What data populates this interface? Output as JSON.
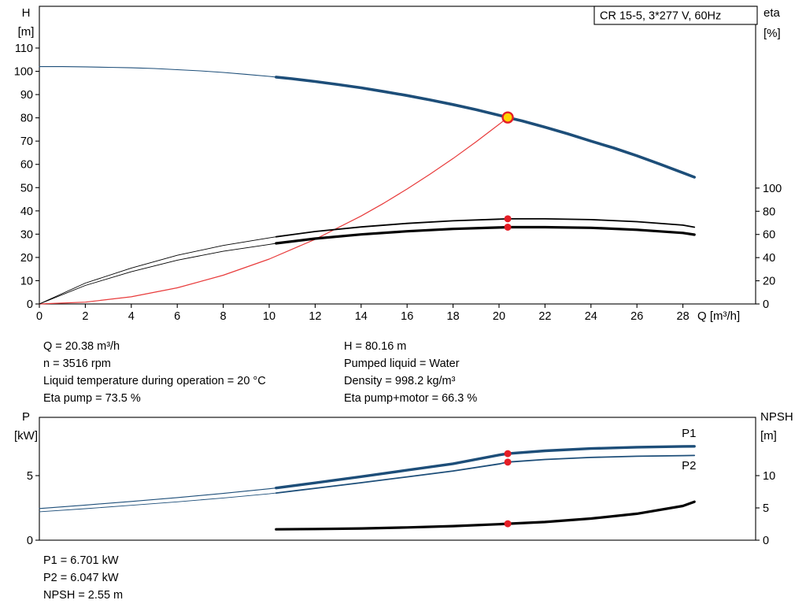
{
  "title_box": "CR 15-5, 3*277 V, 60Hz",
  "info_top_left": [
    "Q = 20.38 m³/h",
    "n = 3516 rpm",
    "Liquid temperature during operation = 20 °C",
    "Eta pump = 73.5 %"
  ],
  "info_top_right": [
    "H = 80.16 m",
    "Pumped liquid = Water",
    "Density = 998.2 kg/m³",
    "Eta pump+motor = 66.3 %"
  ],
  "info_bottom": [
    "P1 = 6.701 kW",
    "P2 = 6.047 kW",
    "NPSH = 2.55 m"
  ],
  "colors": {
    "curve_blue": "#1d4e79",
    "curve_red": "#e83b3b",
    "curve_black": "#000000",
    "duty_fill": "#ffd400",
    "duty_ring": "#e41e26",
    "dot_red": "#e41e26"
  },
  "chart_data": [
    {
      "id": "performance-chart",
      "type": "line",
      "title": "CR 15-5, 3*277 V, 60Hz",
      "xlabel": "Q [m³/h]",
      "ylabel_left": [
        "H",
        "[m]"
      ],
      "ylabel_right": [
        "eta",
        "[%]"
      ],
      "xlim": [
        0,
        31.2
      ],
      "ylim_left": [
        0,
        128
      ],
      "ylim_right": [
        0,
        100
      ],
      "right_axis_factor": 0.498,
      "x_ticks": [
        0,
        2,
        4,
        6,
        8,
        10,
        12,
        14,
        16,
        18,
        20,
        22,
        24,
        26,
        28
      ],
      "y_ticks_left": [
        0,
        10,
        20,
        30,
        40,
        50,
        60,
        70,
        80,
        90,
        100,
        110
      ],
      "y_ticks_right": [
        0,
        20,
        40,
        60,
        80,
        100
      ],
      "series": [
        {
          "name": "h-curve",
          "axis": "left",
          "color": "#1d4e79",
          "width_thin": 1.1,
          "width_thick": 3.6,
          "split_q": 10.3,
          "x": [
            0,
            1,
            2,
            3,
            4,
            5,
            6,
            7,
            8,
            9,
            10,
            10.3,
            11,
            12,
            13,
            14,
            15,
            16,
            17,
            18,
            19,
            20,
            20.38,
            21,
            22,
            23,
            24,
            25,
            26,
            27,
            28,
            28.5
          ],
          "y": [
            102,
            102,
            101.9,
            101.7,
            101.5,
            101.2,
            100.7,
            100.2,
            99.5,
            98.7,
            97.8,
            97.5,
            96.8,
            95.6,
            94.3,
            92.9,
            91.3,
            89.6,
            87.7,
            85.7,
            83.5,
            81.1,
            80.16,
            78.7,
            76,
            73.1,
            70,
            67,
            63.7,
            60.1,
            56.4,
            54.5
          ]
        },
        {
          "name": "system-curve",
          "axis": "left",
          "color": "#e83b3b",
          "width_thick": 1.2,
          "x": [
            0,
            2,
            4,
            6,
            8,
            10,
            12,
            14,
            15,
            16,
            17,
            18,
            19,
            20,
            20.38
          ],
          "y": [
            0,
            0.77,
            3.09,
            6.95,
            12.35,
            19.3,
            27.8,
            37.8,
            43.4,
            49.4,
            55.8,
            62.5,
            69.7,
            77.2,
            80.16
          ]
        },
        {
          "name": "eta-pump-curve",
          "axis": "right",
          "color": "#000000",
          "width_thin": 0.9,
          "width_thick": 1.8,
          "split_q": 10.3,
          "x": [
            0,
            2,
            4,
            6,
            8,
            10,
            10.3,
            12,
            14,
            16,
            18,
            20,
            20.38,
            22,
            24,
            26,
            28,
            28.5
          ],
          "y": [
            0,
            18,
            31,
            42,
            50.5,
            57,
            58,
            62.5,
            66.5,
            69.5,
            71.8,
            73.2,
            73.5,
            73.5,
            72.8,
            71,
            68,
            66.3
          ]
        },
        {
          "name": "eta-pump-motor-curve",
          "axis": "right",
          "color": "#000000",
          "width_thin": 0.9,
          "width_thick": 3.2,
          "split_q": 10.3,
          "x": [
            0,
            2,
            4,
            6,
            8,
            10,
            10.3,
            12,
            14,
            16,
            18,
            20,
            20.38,
            22,
            24,
            26,
            28,
            28.5
          ],
          "y": [
            0,
            16,
            27.8,
            37.8,
            45.5,
            51.4,
            52.3,
            56.4,
            60,
            62.7,
            64.8,
            66,
            66.3,
            66.3,
            65.7,
            64,
            61.3,
            59.8
          ]
        }
      ],
      "markers": [
        {
          "name": "duty-eta-pump-dot",
          "q": 20.38,
          "v": 73.5,
          "axis": "right",
          "r": 4.5,
          "fill": "#e41e26"
        },
        {
          "name": "duty-eta-motor-dot",
          "q": 20.38,
          "v": 66.3,
          "axis": "right",
          "r": 4.5,
          "fill": "#e41e26"
        },
        {
          "name": "duty-point",
          "q": 20.38,
          "v": 80.16,
          "axis": "left",
          "r": 6.5,
          "fill": "#ffd400",
          "stroke": "#e41e26",
          "stroke_width": 2.4
        }
      ],
      "annotations": []
    },
    {
      "id": "power-npsh-chart",
      "type": "line",
      "title": "",
      "xlabel": "",
      "ylabel_left": [
        "P",
        "[kW]"
      ],
      "ylabel_right": [
        "NPSH",
        "[m]"
      ],
      "xlim": [
        0,
        31.2
      ],
      "ylim_left": [
        0,
        9.5
      ],
      "ylim_right": [
        0,
        19
      ],
      "right_axis_factor": 0.5,
      "x_ticks": [],
      "y_ticks_left": [
        0,
        5
      ],
      "y_ticks_right": [
        0,
        5,
        10
      ],
      "series": [
        {
          "name": "p1-curve",
          "axis": "left",
          "color": "#1d4e79",
          "width_thin": 1.1,
          "width_thick": 3.4,
          "split_q": 10.3,
          "x": [
            0,
            2,
            4,
            6,
            8,
            10,
            10.3,
            12,
            14,
            16,
            18,
            20,
            20.38,
            22,
            24,
            26,
            28,
            28.5
          ],
          "y": [
            2.45,
            2.72,
            3.0,
            3.3,
            3.62,
            3.98,
            4.04,
            4.44,
            4.92,
            5.42,
            5.92,
            6.6,
            6.701,
            6.92,
            7.1,
            7.2,
            7.26,
            7.27
          ]
        },
        {
          "name": "p2-curve",
          "axis": "left",
          "color": "#1d4e79",
          "width_thin": 0.9,
          "width_thick": 1.8,
          "split_q": 10.3,
          "x": [
            0,
            2,
            4,
            6,
            8,
            10,
            10.3,
            12,
            14,
            16,
            18,
            20,
            20.38,
            22,
            24,
            26,
            28,
            28.5
          ],
          "y": [
            2.2,
            2.44,
            2.7,
            2.97,
            3.27,
            3.59,
            3.65,
            4.02,
            4.45,
            4.9,
            5.36,
            5.9,
            6.047,
            6.25,
            6.41,
            6.5,
            6.55,
            6.56
          ]
        },
        {
          "name": "npsh-curve",
          "axis": "right",
          "color": "#000000",
          "width_thick": 3.2,
          "x": [
            10.3,
            12,
            14,
            16,
            18,
            20,
            20.38,
            22,
            24,
            26,
            28,
            28.5
          ],
          "y": [
            1.68,
            1.73,
            1.82,
            1.97,
            2.18,
            2.47,
            2.55,
            2.82,
            3.35,
            4.1,
            5.3,
            5.95
          ]
        }
      ],
      "markers": [
        {
          "name": "duty-p1-dot",
          "q": 20.38,
          "v": 6.701,
          "axis": "left",
          "r": 4.5,
          "fill": "#e41e26"
        },
        {
          "name": "duty-p2-dot",
          "q": 20.38,
          "v": 6.047,
          "axis": "left",
          "r": 4.5,
          "fill": "#e41e26"
        },
        {
          "name": "duty-npsh-dot",
          "q": 20.38,
          "v": 2.55,
          "axis": "right",
          "r": 4.5,
          "fill": "#e41e26"
        }
      ],
      "annotations": [
        {
          "text": "P1",
          "q": 27.95,
          "v": 8.0,
          "axis": "left",
          "color": "#1d4e79"
        },
        {
          "text": "P2",
          "q": 27.95,
          "v": 5.49,
          "axis": "left",
          "color": "#1d4e79"
        }
      ]
    }
  ]
}
